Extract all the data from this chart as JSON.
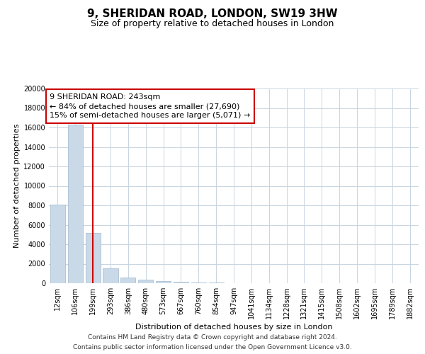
{
  "title": "9, SHERIDAN ROAD, LONDON, SW19 3HW",
  "subtitle": "Size of property relative to detached houses in London",
  "xlabel": "Distribution of detached houses by size in London",
  "ylabel": "Number of detached properties",
  "categories": [
    "12sqm",
    "106sqm",
    "199sqm",
    "293sqm",
    "386sqm",
    "480sqm",
    "573sqm",
    "667sqm",
    "760sqm",
    "854sqm",
    "947sqm",
    "1041sqm",
    "1134sqm",
    "1228sqm",
    "1321sqm",
    "1415sqm",
    "1508sqm",
    "1602sqm",
    "1695sqm",
    "1789sqm",
    "1882sqm"
  ],
  "values": [
    8050,
    16300,
    5150,
    1500,
    580,
    340,
    200,
    140,
    90,
    50,
    0,
    0,
    0,
    0,
    0,
    0,
    0,
    0,
    0,
    0,
    0
  ],
  "bar_color": "#c9d9e8",
  "bar_edge_color": "#a0b8cc",
  "vline_x": 2,
  "vline_color": "#cc0000",
  "annotation_line1": "9 SHERIDAN ROAD: 243sqm",
  "annotation_line2": "← 84% of detached houses are smaller (27,690)",
  "annotation_line3": "15% of semi-detached houses are larger (5,071) →",
  "annotation_box_color": "#ffffff",
  "annotation_box_edge_color": "#cc0000",
  "ylim": [
    0,
    20000
  ],
  "yticks": [
    0,
    2000,
    4000,
    6000,
    8000,
    10000,
    12000,
    14000,
    16000,
    18000,
    20000
  ],
  "background_color": "#ffffff",
  "grid_color": "#c8d4e0",
  "footer_line1": "Contains HM Land Registry data © Crown copyright and database right 2024.",
  "footer_line2": "Contains public sector information licensed under the Open Government Licence v3.0.",
  "title_fontsize": 11,
  "subtitle_fontsize": 9,
  "axis_label_fontsize": 8,
  "tick_fontsize": 7,
  "annotation_fontsize": 8,
  "footer_fontsize": 6.5
}
